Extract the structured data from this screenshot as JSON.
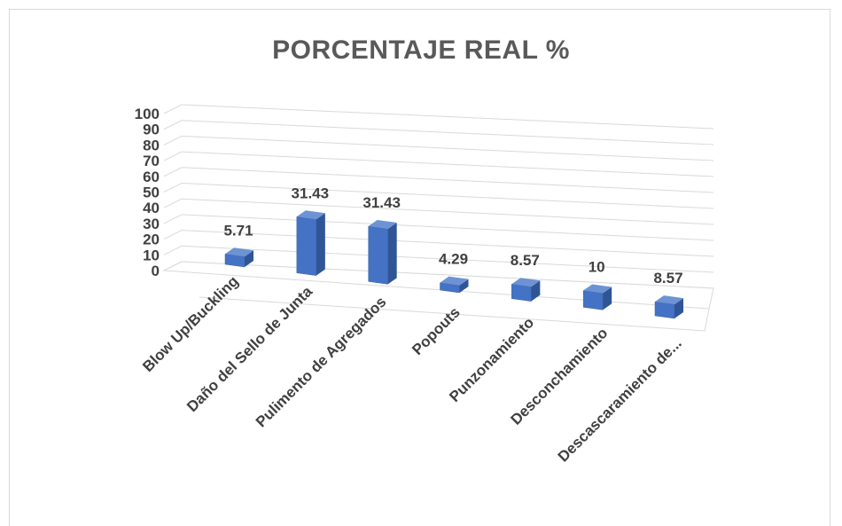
{
  "chart_data": {
    "type": "bar",
    "title": "PORCENTAJE REAL  %",
    "categories": [
      "Blow Up/Buckling",
      "Daño del Sello de Junta",
      "Pulimento de Agregados",
      "Popouts",
      "Punzonamiento",
      "Desconchamiento",
      "Descascaramiento de..."
    ],
    "values": [
      5.71,
      31.43,
      31.43,
      4.29,
      8.57,
      10,
      8.57
    ],
    "data_labels": [
      "5.71",
      "31.43",
      "31.43",
      "4.29",
      "8.57",
      "10",
      "8.57"
    ],
    "yticks": [
      "0",
      "10",
      "20",
      "30",
      "40",
      "50",
      "60",
      "70",
      "80",
      "90",
      "100"
    ],
    "ylim": [
      0,
      100
    ],
    "grid": true,
    "three_d": true,
    "colors": {
      "bar_front": "#4472c4",
      "bar_top": "#6d93d4",
      "bar_side": "#2f5597",
      "grid": "#d9d9d9",
      "text": "#404040"
    }
  }
}
